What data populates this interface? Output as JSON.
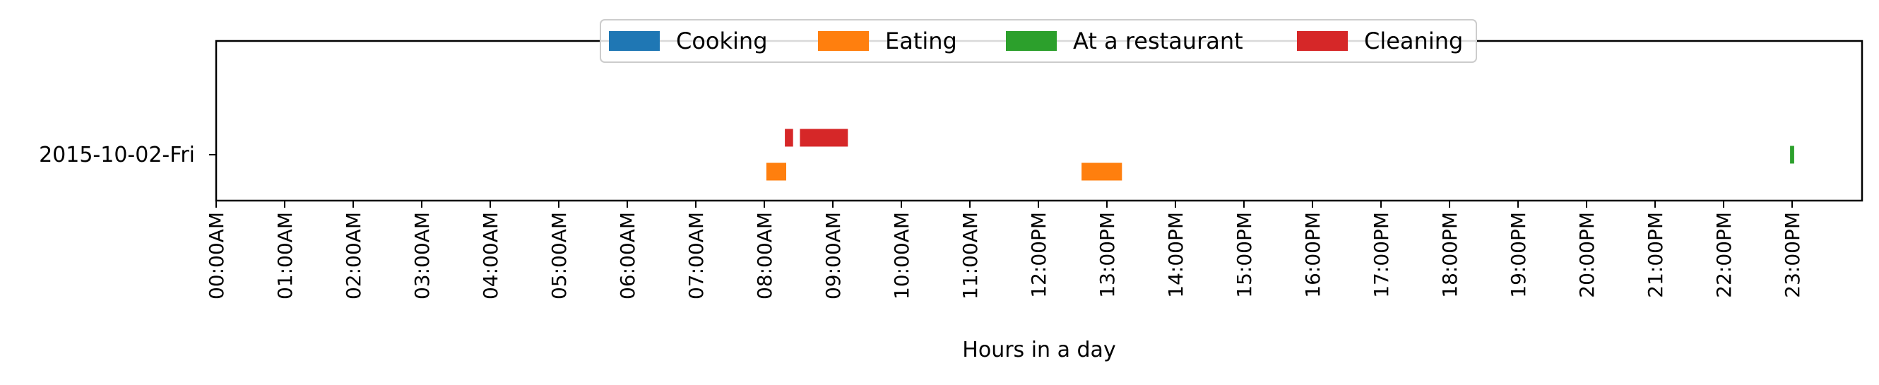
{
  "chart_data": {
    "type": "gantt",
    "title": "",
    "xlabel": "Hours in a day",
    "ylabel": "",
    "xlim": [
      0,
      24
    ],
    "x_ticks": [
      "00:00AM",
      "01:00AM",
      "02:00AM",
      "03:00AM",
      "04:00AM",
      "05:00AM",
      "06:00AM",
      "07:00AM",
      "08:00AM",
      "09:00AM",
      "10:00AM",
      "11:00AM",
      "12:00PM",
      "13:00PM",
      "14:00PM",
      "15:00PM",
      "16:00PM",
      "17:00PM",
      "18:00PM",
      "19:00PM",
      "20:00PM",
      "21:00PM",
      "22:00PM",
      "23:00PM"
    ],
    "categories": [
      "2015-10-02-Fri"
    ],
    "grid": false,
    "legend_position": "top-center",
    "series": [
      {
        "name": "Cooking",
        "color": "#1f77b4",
        "lane": 0,
        "segments": []
      },
      {
        "name": "Eating",
        "color": "#ff7f0e",
        "lane": -1,
        "segments": [
          [
            8.03,
            8.32
          ],
          [
            12.63,
            13.22
          ]
        ]
      },
      {
        "name": "At a restaurant",
        "color": "#2ca02c",
        "lane": 0,
        "segments": [
          [
            22.97,
            23.03
          ]
        ]
      },
      {
        "name": "Cleaning",
        "color": "#d62728",
        "lane": 1,
        "segments": [
          [
            8.3,
            8.42
          ],
          [
            8.52,
            9.22
          ]
        ]
      }
    ]
  }
}
